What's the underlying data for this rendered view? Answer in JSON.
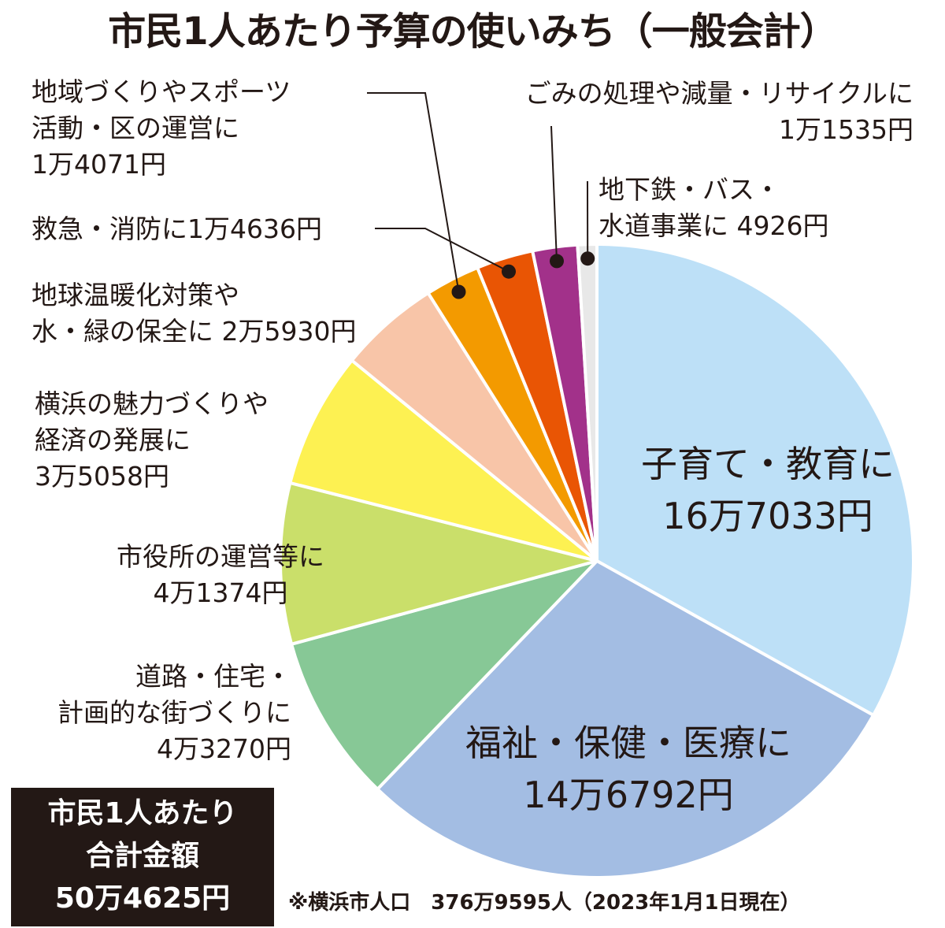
{
  "title": "市民1人あたり予算の使いみち（一般会計）",
  "chart_data": {
    "type": "pie",
    "title": "市民1人あたり予算の使いみち（一般会計）",
    "unit": "円",
    "slices": [
      {
        "key": "kosodate",
        "label_lines": [
          "子育て・教育に",
          "16万7033円"
        ],
        "value": 167033,
        "color": "#bde0f7"
      },
      {
        "key": "fukushi",
        "label_lines": [
          "福祉・保健・医療に",
          "14万6792円"
        ],
        "value": 146792,
        "color": "#a3bde3"
      },
      {
        "key": "doro",
        "label_lines": [
          "道路・住宅・",
          "計画的な街づくりに",
          "4万3270円"
        ],
        "value": 43270,
        "color": "#87c896"
      },
      {
        "key": "shiyakusho",
        "label_lines": [
          "市役所の運営等に",
          "4万1374円"
        ],
        "value": 41374,
        "color": "#cadf6a"
      },
      {
        "key": "miryoku",
        "label_lines": [
          "横浜の魅力づくりや",
          "経済の発展に",
          "3万5058円"
        ],
        "value": 35058,
        "color": "#fdf152"
      },
      {
        "key": "ondanka",
        "label_lines": [
          "地球温暖化対策や",
          "水・緑の保全に 2万5930円"
        ],
        "value": 25930,
        "color": "#f8c5a8"
      },
      {
        "key": "chiiki",
        "label_lines": [
          "地域づくりやスポーツ",
          "活動・区の運営に",
          "1万4071円"
        ],
        "value": 14071,
        "color": "#f39a00"
      },
      {
        "key": "kyukyu",
        "label_lines": [
          "救急・消防に1万4636円"
        ],
        "value": 14636,
        "color": "#e95504"
      },
      {
        "key": "gomi",
        "label_lines": [
          "ごみの処理や減量・リサイクルに",
          "1万1535円"
        ],
        "value": 11535,
        "color": "#a2318a"
      },
      {
        "key": "chikatetsu",
        "label_lines": [
          "地下鉄・バス・",
          "水道事業に 4926円"
        ],
        "value": 4926,
        "color": "#e8e8e8"
      }
    ]
  },
  "total": {
    "lines": [
      "市民1人あたり",
      "合計金額",
      "50万4625円"
    ]
  },
  "footnote": "※横浜市人口　376万9595人（2023年1月1日現在）"
}
